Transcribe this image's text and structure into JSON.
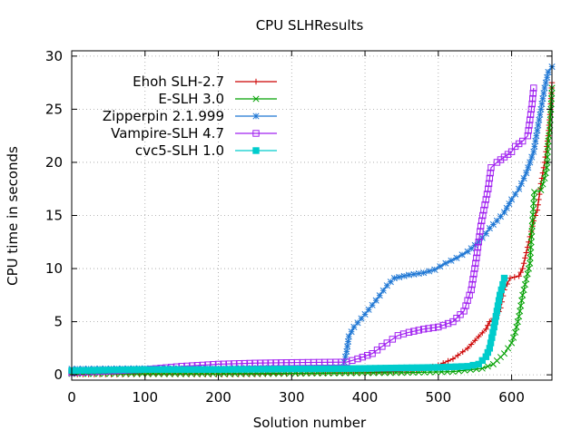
{
  "chart_data": {
    "type": "line",
    "title": "CPU SLHResults",
    "xlabel": "Solution number",
    "ylabel": "CPU time in seconds",
    "xlim": [
      0,
      655
    ],
    "ylim": [
      -0.5,
      30.5
    ],
    "xticks": [
      0,
      100,
      200,
      300,
      400,
      500,
      600
    ],
    "yticks": [
      0,
      5,
      10,
      15,
      20,
      25,
      30
    ],
    "grid": true,
    "legend_position": "top-left",
    "series": [
      {
        "name": "Ehoh SLH-2.7",
        "color": "#cc0000",
        "marker": "plus",
        "points": [
          [
            0,
            0.05
          ],
          [
            100,
            0.05
          ],
          [
            250,
            0.05
          ],
          [
            300,
            0.1
          ],
          [
            400,
            0.2
          ],
          [
            470,
            0.4
          ],
          [
            500,
            0.9
          ],
          [
            520,
            1.5
          ],
          [
            540,
            2.5
          ],
          [
            555,
            3.6
          ],
          [
            565,
            4.3
          ],
          [
            570,
            5.0
          ],
          [
            580,
            5.6
          ],
          [
            585,
            6.3
          ],
          [
            590,
            8.0
          ],
          [
            598,
            9.1
          ],
          [
            610,
            9.3
          ],
          [
            615,
            10.0
          ],
          [
            620,
            11.5
          ],
          [
            625,
            13.0
          ],
          [
            630,
            14.5
          ],
          [
            635,
            15.5
          ],
          [
            640,
            18.0
          ],
          [
            645,
            20.0
          ],
          [
            650,
            22.5
          ],
          [
            653,
            25.0
          ],
          [
            655,
            27.5
          ]
        ]
      },
      {
        "name": "E-SLH 3.0",
        "color": "#00a000",
        "marker": "cross",
        "points": [
          [
            0,
            0.1
          ],
          [
            200,
            0.1
          ],
          [
            350,
            0.15
          ],
          [
            450,
            0.2
          ],
          [
            520,
            0.3
          ],
          [
            560,
            0.6
          ],
          [
            575,
            1.0
          ],
          [
            590,
            2.0
          ],
          [
            600,
            3.0
          ],
          [
            605,
            4.0
          ],
          [
            610,
            5.5
          ],
          [
            615,
            7.5
          ],
          [
            620,
            9.0
          ],
          [
            625,
            10.5
          ],
          [
            628,
            14.0
          ],
          [
            631,
            17.2
          ],
          [
            640,
            17.4
          ],
          [
            645,
            18.5
          ],
          [
            648,
            19.5
          ],
          [
            650,
            22.0
          ],
          [
            652,
            23.0
          ],
          [
            654,
            25.5
          ],
          [
            655,
            27.0
          ]
        ]
      },
      {
        "name": "Zipperpin 2.1.999",
        "color": "#1f77d4",
        "marker": "star",
        "points": [
          [
            0,
            0.55
          ],
          [
            100,
            0.6
          ],
          [
            200,
            0.6
          ],
          [
            300,
            0.65
          ],
          [
            370,
            0.7
          ],
          [
            375,
            2.2
          ],
          [
            378,
            3.6
          ],
          [
            385,
            4.5
          ],
          [
            400,
            5.7
          ],
          [
            415,
            7.0
          ],
          [
            430,
            8.4
          ],
          [
            440,
            9.1
          ],
          [
            460,
            9.4
          ],
          [
            480,
            9.6
          ],
          [
            495,
            9.9
          ],
          [
            510,
            10.5
          ],
          [
            525,
            11.0
          ],
          [
            540,
            11.6
          ],
          [
            555,
            12.5
          ],
          [
            565,
            13.3
          ],
          [
            570,
            13.8
          ],
          [
            580,
            14.5
          ],
          [
            590,
            15.3
          ],
          [
            600,
            16.5
          ],
          [
            610,
            17.5
          ],
          [
            620,
            19.0
          ],
          [
            630,
            21.0
          ],
          [
            635,
            23.0
          ],
          [
            640,
            25.0
          ],
          [
            645,
            27.0
          ],
          [
            650,
            28.5
          ],
          [
            655,
            29.0
          ]
        ]
      },
      {
        "name": "Vampire-SLH 4.7",
        "color": "#a020f0",
        "marker": "square-open",
        "points": [
          [
            0,
            0.2
          ],
          [
            100,
            0.5
          ],
          [
            150,
            0.8
          ],
          [
            200,
            1.0
          ],
          [
            250,
            1.1
          ],
          [
            300,
            1.15
          ],
          [
            375,
            1.2
          ],
          [
            390,
            1.5
          ],
          [
            410,
            2.0
          ],
          [
            430,
            3.0
          ],
          [
            445,
            3.7
          ],
          [
            460,
            4.0
          ],
          [
            480,
            4.3
          ],
          [
            500,
            4.5
          ],
          [
            520,
            5.0
          ],
          [
            535,
            6.0
          ],
          [
            545,
            8.0
          ],
          [
            552,
            11.0
          ],
          [
            558,
            14.0
          ],
          [
            562,
            15.5
          ],
          [
            568,
            17.5
          ],
          [
            572,
            19.5
          ],
          [
            580,
            20.0
          ],
          [
            590,
            20.5
          ],
          [
            600,
            21.0
          ],
          [
            605,
            21.5
          ],
          [
            615,
            22.0
          ],
          [
            622,
            22.5
          ],
          [
            625,
            24.0
          ],
          [
            628,
            25.5
          ],
          [
            630,
            27.0
          ]
        ]
      },
      {
        "name": "cvc5-SLH 1.0",
        "color": "#00cccc",
        "marker": "square-filled",
        "points": [
          [
            0,
            0.4
          ],
          [
            50,
            0.45
          ],
          [
            100,
            0.5
          ],
          [
            200,
            0.5
          ],
          [
            300,
            0.55
          ],
          [
            400,
            0.6
          ],
          [
            450,
            0.65
          ],
          [
            500,
            0.7
          ],
          [
            540,
            0.8
          ],
          [
            555,
            1.0
          ],
          [
            565,
            1.7
          ],
          [
            570,
            2.5
          ],
          [
            573,
            3.5
          ],
          [
            576,
            4.5
          ],
          [
            580,
            6.0
          ],
          [
            584,
            7.5
          ],
          [
            588,
            8.5
          ],
          [
            590,
            9.1
          ]
        ]
      }
    ]
  }
}
